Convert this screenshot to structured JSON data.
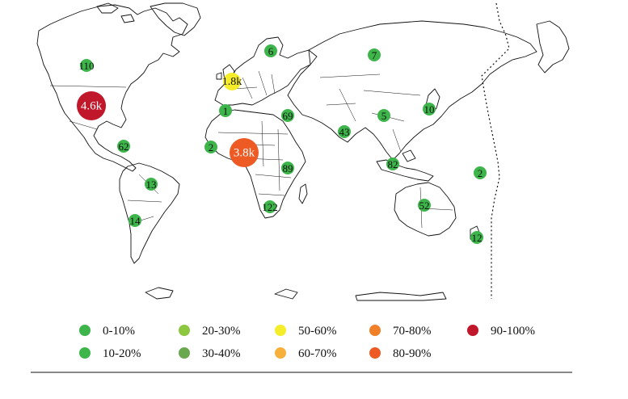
{
  "legend": [
    {
      "label": "0-10%",
      "color": "#3db54a"
    },
    {
      "label": "10-20%",
      "color": "#3db54a"
    },
    {
      "label": "20-30%",
      "color": "#8dc63f"
    },
    {
      "label": "30-40%",
      "color": "#6aa84f"
    },
    {
      "label": "50-60%",
      "color": "#f5ec2a"
    },
    {
      "label": "60-70%",
      "color": "#f7b03b"
    },
    {
      "label": "70-80%",
      "color": "#f07f2a"
    },
    {
      "label": "80-90%",
      "color": "#ee5a24"
    },
    {
      "label": "90-100%",
      "color": "#c0172b"
    }
  ],
  "markers": [
    {
      "region": "canada",
      "label": "110",
      "color": "#3db54a",
      "size": "small"
    },
    {
      "region": "united-states",
      "label": "4.6k",
      "color": "#c0172b",
      "size": "large"
    },
    {
      "region": "caribbean",
      "label": "62",
      "color": "#3db54a",
      "size": "small"
    },
    {
      "region": "brazil",
      "label": "13",
      "color": "#3db54a",
      "size": "small"
    },
    {
      "region": "argentina",
      "label": "14",
      "color": "#3db54a",
      "size": "small"
    },
    {
      "region": "western-europe",
      "label": "1.8k",
      "color": "#f5ec2a",
      "size": "medium"
    },
    {
      "region": "scandinavia",
      "label": "6",
      "color": "#3db54a",
      "size": "small"
    },
    {
      "region": "russia",
      "label": "7",
      "color": "#3db54a",
      "size": "small"
    },
    {
      "region": "north-africa",
      "label": "1",
      "color": "#3db54a",
      "size": "small"
    },
    {
      "region": "middle-east",
      "label": "69",
      "color": "#3db54a",
      "size": "small"
    },
    {
      "region": "west-africa",
      "label": "2",
      "color": "#3db54a",
      "size": "small"
    },
    {
      "region": "nigeria",
      "label": "3.8k",
      "color": "#ee5a24",
      "size": "large"
    },
    {
      "region": "east-africa",
      "label": "89",
      "color": "#3db54a",
      "size": "small"
    },
    {
      "region": "southern-africa",
      "label": "122",
      "color": "#3db54a",
      "size": "small"
    },
    {
      "region": "south-asia",
      "label": "43",
      "color": "#3db54a",
      "size": "small"
    },
    {
      "region": "china",
      "label": "5",
      "color": "#3db54a",
      "size": "small"
    },
    {
      "region": "japan",
      "label": "10",
      "color": "#3db54a",
      "size": "small"
    },
    {
      "region": "southeast-asia",
      "label": "82",
      "color": "#3db54a",
      "size": "small"
    },
    {
      "region": "pacific-islands",
      "label": "2",
      "color": "#3db54a",
      "size": "small"
    },
    {
      "region": "australia",
      "label": "52",
      "color": "#3db54a",
      "size": "small"
    },
    {
      "region": "new-zealand",
      "label": "12",
      "color": "#3db54a",
      "size": "small"
    }
  ]
}
